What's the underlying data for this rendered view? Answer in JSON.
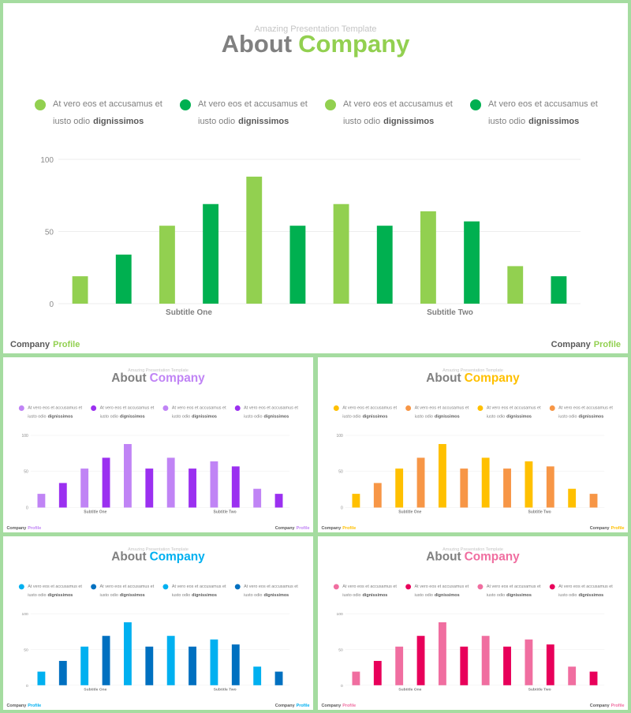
{
  "slides": [
    {
      "theme": "green",
      "colors": {
        "light": "#92d050",
        "dark": "#00b050"
      },
      "supertitle": "Amazing Presentation Template",
      "title_word1": "About",
      "title_word2": "Company",
      "legend": [
        {
          "line1": "At vero eos et accusamus et",
          "line2_plain": "iusto odio",
          "line2_bold": "dignissimos"
        },
        {
          "line1": "At vero eos et accusamus et",
          "line2_plain": "iusto odio",
          "line2_bold": "dignissimos"
        },
        {
          "line1": "At vero eos et accusamus et",
          "line2_plain": "iusto odio",
          "line2_bold": "dignissimos"
        },
        {
          "line1": "At vero eos et accusamus et",
          "line2_plain": "iusto odio",
          "line2_bold": "dignissimos"
        }
      ],
      "footer_word1": "Company",
      "footer_word2": "Profile"
    },
    {
      "theme": "purple",
      "colors": {
        "light": "#c084f5",
        "dark": "#9b30f0"
      },
      "supertitle": "Amazing Presentation Template",
      "title_word1": "About",
      "title_word2": "Company",
      "legend": [
        {
          "line1": "At vero eos et accusamus et",
          "line2_plain": "iusto odio",
          "line2_bold": "dignissimos"
        },
        {
          "line1": "At vero eos et accusamus et",
          "line2_plain": "iusto odio",
          "line2_bold": "dignissimos"
        },
        {
          "line1": "At vero eos et accusamus et",
          "line2_plain": "iusto odio",
          "line2_bold": "dignissimos"
        },
        {
          "line1": "At vero eos et accusamus et",
          "line2_plain": "iusto odio",
          "line2_bold": "dignissimos"
        }
      ],
      "footer_word1": "Company",
      "footer_word2": "Profile"
    },
    {
      "theme": "orange",
      "colors": {
        "light": "#ffc000",
        "dark": "#f79646"
      },
      "supertitle": "Amazing Presentation Template",
      "title_word1": "About",
      "title_word2": "Company",
      "legend": [
        {
          "line1": "At vero eos et accusamus et",
          "line2_plain": "iusto odio",
          "line2_bold": "dignissimos"
        },
        {
          "line1": "At vero eos et accusamus et",
          "line2_plain": "iusto odio",
          "line2_bold": "dignissimos"
        },
        {
          "line1": "At vero eos et accusamus et",
          "line2_plain": "iusto odio",
          "line2_bold": "dignissimos"
        },
        {
          "line1": "At vero eos et accusamus et",
          "line2_plain": "iusto odio",
          "line2_bold": "dignissimos"
        }
      ],
      "footer_word1": "Company",
      "footer_word2": "Profile"
    },
    {
      "theme": "blue",
      "colors": {
        "light": "#00b0f0",
        "dark": "#0070c0"
      },
      "supertitle": "Amazing Presentation Template",
      "title_word1": "About",
      "title_word2": "Company",
      "legend": [
        {
          "line1": "At vero eos et accusamus et",
          "line2_plain": "iusto odio",
          "line2_bold": "dignissimos"
        },
        {
          "line1": "At vero eos et accusamus et",
          "line2_plain": "iusto odio",
          "line2_bold": "dignissimos"
        },
        {
          "line1": "At vero eos et accusamus et",
          "line2_plain": "iusto odio",
          "line2_bold": "dignissimos"
        },
        {
          "line1": "At vero eos et accusamus et",
          "line2_plain": "iusto odio",
          "line2_bold": "dignissimos"
        }
      ],
      "footer_word1": "Company",
      "footer_word2": "Profile"
    },
    {
      "theme": "pink",
      "colors": {
        "light": "#f06ea0",
        "dark": "#e8005a"
      },
      "supertitle": "Amazing Presentation Template",
      "title_word1": "About",
      "title_word2": "Company",
      "legend": [
        {
          "line1": "At vero eos et accusamus et",
          "line2_plain": "iusto odio",
          "line2_bold": "dignissimos"
        },
        {
          "line1": "At vero eos et accusamus et",
          "line2_plain": "iusto odio",
          "line2_bold": "dignissimos"
        },
        {
          "line1": "At vero eos et accusamus et",
          "line2_plain": "iusto odio",
          "line2_bold": "dignissimos"
        },
        {
          "line1": "At vero eos et accusamus et",
          "line2_plain": "iusto odio",
          "line2_bold": "dignissimos"
        }
      ],
      "footer_word1": "Company",
      "footer_word2": "Profile"
    }
  ],
  "chart_data": [
    {
      "type": "bar",
      "slide": "green",
      "ylim": [
        0,
        100
      ],
      "yticks": [
        0,
        50,
        100
      ],
      "grid": true,
      "values": [
        19,
        34,
        54,
        69,
        88,
        54,
        69,
        54,
        64,
        57,
        26,
        19
      ],
      "color_pattern": [
        "light",
        "dark",
        "light",
        "dark",
        "light",
        "dark",
        "light",
        "dark",
        "light",
        "dark",
        "light",
        "dark"
      ],
      "group_labels": [
        "Subtitle One",
        "Subtitle Two"
      ]
    },
    {
      "type": "bar",
      "slide": "purple",
      "ylim": [
        0,
        100
      ],
      "yticks": [
        0,
        50,
        100
      ],
      "grid": true,
      "values": [
        19,
        34,
        54,
        69,
        88,
        54,
        69,
        54,
        64,
        57,
        26,
        19
      ],
      "color_pattern": [
        "light",
        "dark",
        "light",
        "dark",
        "light",
        "dark",
        "light",
        "dark",
        "light",
        "dark",
        "light",
        "dark"
      ],
      "group_labels": [
        "Subtitle One",
        "Subtitle Two"
      ]
    },
    {
      "type": "bar",
      "slide": "orange",
      "ylim": [
        0,
        100
      ],
      "yticks": [
        0,
        50,
        100
      ],
      "grid": true,
      "values": [
        19,
        34,
        54,
        69,
        88,
        54,
        69,
        54,
        64,
        57,
        26,
        19
      ],
      "color_pattern": [
        "light",
        "dark",
        "light",
        "dark",
        "light",
        "dark",
        "light",
        "dark",
        "light",
        "dark",
        "light",
        "dark"
      ],
      "group_labels": [
        "Subtitle One",
        "Subtitle Two"
      ]
    },
    {
      "type": "bar",
      "slide": "blue",
      "ylim": [
        0,
        100
      ],
      "yticks": [
        0,
        50,
        100
      ],
      "grid": true,
      "values": [
        19,
        34,
        54,
        69,
        88,
        54,
        69,
        54,
        64,
        57,
        26,
        19
      ],
      "color_pattern": [
        "light",
        "dark",
        "light",
        "dark",
        "light",
        "dark",
        "light",
        "dark",
        "light",
        "dark",
        "light",
        "dark"
      ],
      "group_labels": [
        "Subtitle One",
        "Subtitle Two"
      ]
    },
    {
      "type": "bar",
      "slide": "pink",
      "ylim": [
        0,
        100
      ],
      "yticks": [
        0,
        50,
        100
      ],
      "grid": true,
      "values": [
        19,
        34,
        54,
        69,
        88,
        54,
        69,
        54,
        64,
        57,
        26,
        19
      ],
      "color_pattern": [
        "light",
        "dark",
        "light",
        "dark",
        "light",
        "dark",
        "light",
        "dark",
        "light",
        "dark",
        "light",
        "dark"
      ],
      "group_labels": [
        "Subtitle One",
        "Subtitle Two"
      ]
    }
  ]
}
